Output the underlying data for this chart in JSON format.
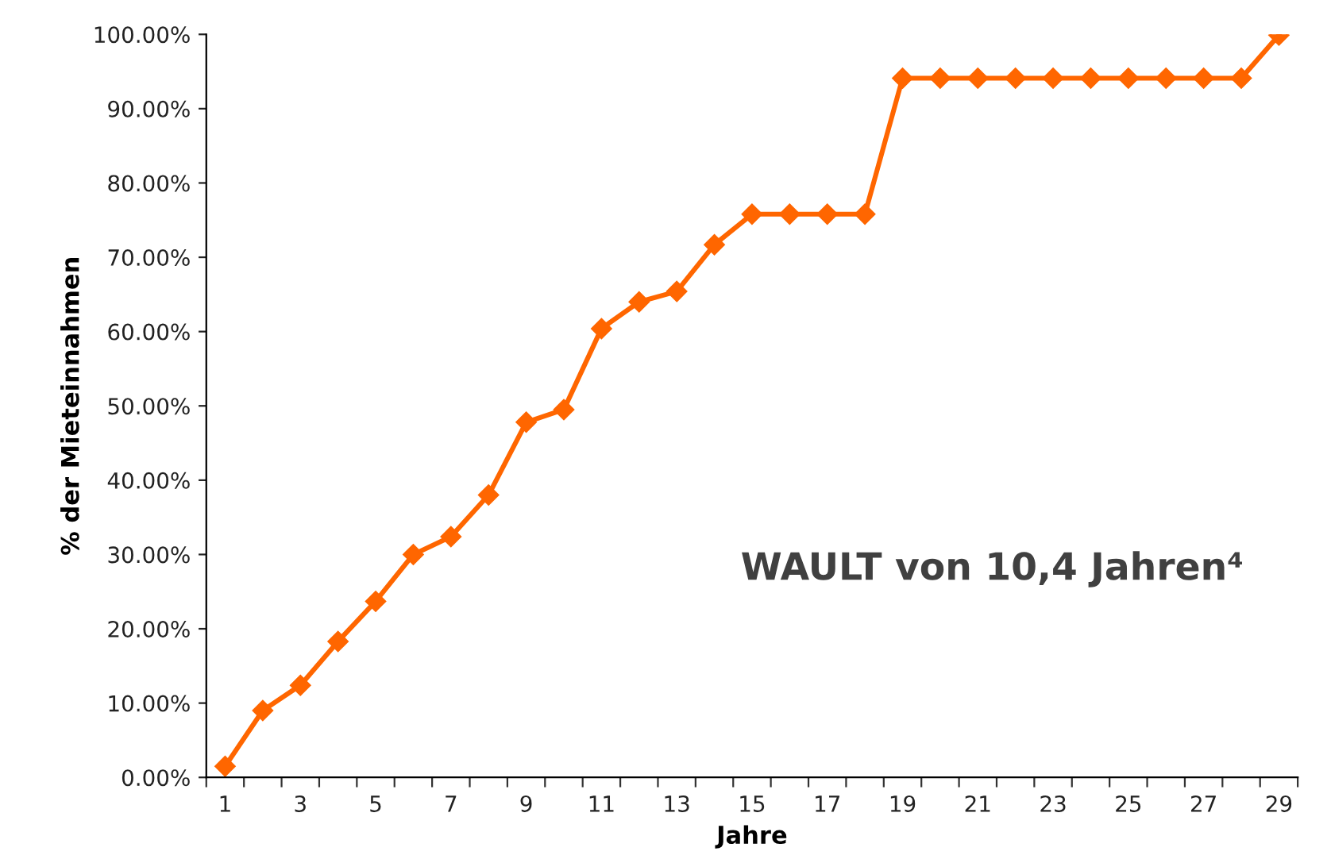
{
  "chart_data": {
    "type": "line",
    "xlabel": "Jahre",
    "ylabel": "% der Mieteinnahmen",
    "categories": [
      "1",
      null,
      "3",
      null,
      "5",
      null,
      "7",
      null,
      "9",
      null,
      "11",
      null,
      "13",
      null,
      "15",
      null,
      "17",
      null,
      "19",
      null,
      "21",
      null,
      "23",
      null,
      "25",
      null,
      "27",
      null,
      "29"
    ],
    "series": [
      {
        "color": "#ff6600",
        "values": [
          1.5,
          9.0,
          12.4,
          18.3,
          23.7,
          30.0,
          32.4,
          38.0,
          47.8,
          49.5,
          60.4,
          64.0,
          65.4,
          71.7,
          75.8,
          75.8,
          75.8,
          75.8,
          94.1,
          94.1,
          94.1,
          94.1,
          94.1,
          94.1,
          94.1,
          94.1,
          94.1,
          94.1,
          99.9
        ]
      }
    ],
    "ylim": [
      0,
      100
    ],
    "yticks": [
      {
        "value": 0,
        "label": "0.00%"
      },
      {
        "value": 10,
        "label": "10.00%"
      },
      {
        "value": 20,
        "label": "20.00%"
      },
      {
        "value": 30,
        "label": "30.00%"
      },
      {
        "value": 40,
        "label": "40.00%"
      },
      {
        "value": 50,
        "label": "50.00%"
      },
      {
        "value": 60,
        "label": "60.00%"
      },
      {
        "value": 70,
        "label": "70.00%"
      },
      {
        "value": 80,
        "label": "80.00%"
      },
      {
        "value": 90,
        "label": "90.00%"
      },
      {
        "value": 100,
        "label": "100.00%"
      }
    ],
    "marker": "diamond",
    "line_style": "solid",
    "grid": false,
    "legend": false,
    "annotations": [
      "WAULT von 10,4 Jahren⁴"
    ]
  }
}
